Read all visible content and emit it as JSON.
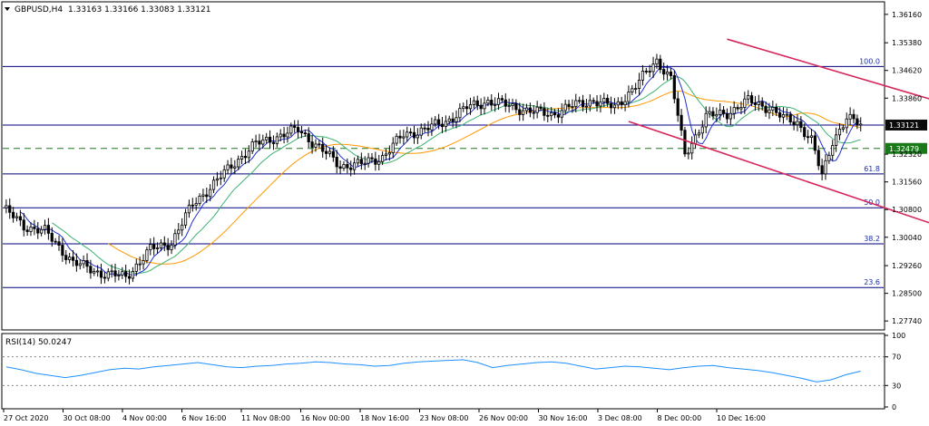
{
  "chart_data": [
    {
      "type": "candlestick",
      "symbol_label": "GBPUSD,H4",
      "ohlc_label": "1.33163 1.33166 1.33083 1.33121",
      "y_ticks": [
        "1.36160",
        "1.35380",
        "1.34620",
        "1.33860",
        "1.33121",
        "1.32479",
        "1.32320",
        "1.31560",
        "1.30800",
        "1.30040",
        "1.29260",
        "1.28500",
        "1.27740"
      ],
      "y_tick_values": [
        1.3616,
        1.3538,
        1.3462,
        1.3386,
        1.33121,
        1.32479,
        1.3232,
        1.3156,
        1.308,
        1.3004,
        1.2926,
        1.285,
        1.2774
      ],
      "current_price": "1.33121",
      "current_price_value": 1.33121,
      "reference_level": "1.32479",
      "reference_level_value": 1.32479,
      "ylim": [
        1.2752,
        1.3648
      ],
      "x_ticks": [
        "27 Oct 2020",
        "30 Oct 08:00",
        "4 Nov 00:00",
        "6 Nov 16:00",
        "11 Nov 08:00",
        "16 Nov 00:00",
        "18 Nov 16:00",
        "23 Nov 08:00",
        "26 Nov 00:00",
        "30 Nov 16:00",
        "3 Dec 08:00",
        "8 Dec 00:00",
        "10 Dec 16:00"
      ],
      "fibonacci_levels": [
        {
          "label": "100.0",
          "price": 1.3473
        },
        {
          "label": "61.8",
          "price": 1.3178
        },
        {
          "label": "50.0",
          "price": 1.3085
        },
        {
          "label": "38.2",
          "price": 1.2986
        },
        {
          "label": "23.6",
          "price": 1.2866
        }
      ],
      "support_level": 1.3322,
      "price_path": [
        [
          0,
          1.3085
        ],
        [
          6,
          1.3035
        ],
        [
          12,
          1.302
        ],
        [
          20,
          1.2935
        ],
        [
          28,
          1.2905
        ],
        [
          35,
          1.2895
        ],
        [
          42,
          1.297
        ],
        [
          48,
          1.299
        ],
        [
          54,
          1.3095
        ],
        [
          60,
          1.315
        ],
        [
          66,
          1.321
        ],
        [
          72,
          1.326
        ],
        [
          78,
          1.328
        ],
        [
          84,
          1.33
        ],
        [
          90,
          1.325
        ],
        [
          96,
          1.32
        ],
        [
          102,
          1.3205
        ],
        [
          108,
          1.3225
        ],
        [
          114,
          1.3285
        ],
        [
          120,
          1.33
        ],
        [
          126,
          1.3322
        ],
        [
          132,
          1.336
        ],
        [
          138,
          1.3378
        ],
        [
          144,
          1.3365
        ],
        [
          150,
          1.335
        ],
        [
          156,
          1.3342
        ],
        [
          162,
          1.3365
        ],
        [
          168,
          1.338
        ],
        [
          174,
          1.336
        ],
        [
          180,
          1.342
        ],
        [
          186,
          1.349
        ],
        [
          190,
          1.344
        ],
        [
          194,
          1.323
        ],
        [
          200,
          1.3335
        ],
        [
          206,
          1.3345
        ],
        [
          212,
          1.3378
        ],
        [
          218,
          1.336
        ],
        [
          222,
          1.333
        ],
        [
          226,
          1.332
        ],
        [
          230,
          1.327
        ],
        [
          233,
          1.317
        ],
        [
          236,
          1.327
        ],
        [
          240,
          1.333
        ],
        [
          244,
          1.3312
        ]
      ],
      "channel_upper": [
        [
          206,
          1.3548
        ],
        [
          300,
          1.328
        ]
      ],
      "channel_lower": [
        [
          178,
          1.3322
        ],
        [
          300,
          1.2925
        ]
      ]
    },
    {
      "type": "line",
      "title": "RSI(14) 50.0247",
      "ylim": [
        0,
        100
      ],
      "y_ticks": [
        "100",
        "70",
        "30",
        "0"
      ],
      "y_tick_values": [
        100,
        70,
        30,
        0
      ],
      "levels": [
        70,
        30
      ],
      "values": [
        56,
        52,
        47,
        44,
        41,
        44,
        48,
        52,
        54,
        53,
        56,
        58,
        60,
        62,
        59,
        56,
        55,
        57,
        58,
        60,
        61,
        63,
        62,
        60,
        59,
        57,
        58,
        61,
        63,
        64,
        65,
        66,
        62,
        55,
        58,
        60,
        62,
        63,
        61,
        57,
        53,
        55,
        57,
        56,
        54,
        52,
        55,
        57,
        58,
        55,
        53,
        51,
        48,
        44,
        40,
        35,
        38,
        45,
        50
      ]
    }
  ]
}
